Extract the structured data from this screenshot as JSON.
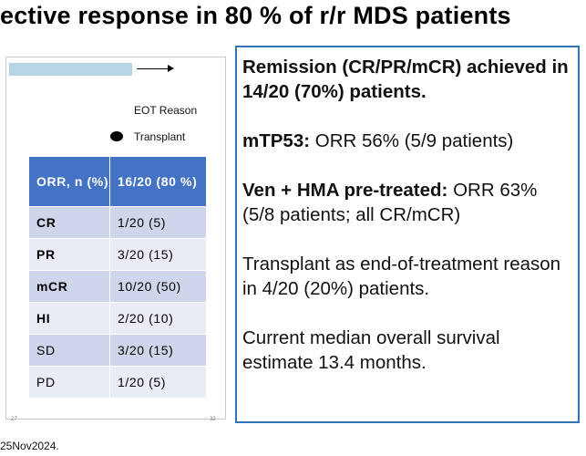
{
  "title": "ective response in 80 % of r/r MDS patients",
  "chart": {
    "legend_title": "EOT Reason",
    "legend_label": "Transplant",
    "axis_left": "27",
    "axis_right": "32"
  },
  "table": {
    "header": [
      "ORR, n (%)",
      "16/20 (80 %)"
    ],
    "rows": [
      {
        "label": "CR",
        "value": "1/20 (5)"
      },
      {
        "label": "PR",
        "value": "3/20 (15)"
      },
      {
        "label": "mCR",
        "value": "10/20 (50)"
      },
      {
        "label": "HI",
        "value": "2/20 (10)"
      },
      {
        "label": "SD",
        "value": "3/20 (15)"
      },
      {
        "label": "PD",
        "value": "1/20 (5)"
      }
    ]
  },
  "footnote": "25Nov2024.",
  "summary": {
    "remission": "Remission (CR/PR/mCR) achieved in 14/20 (70%) patients.",
    "tp53_label": "mTP53:",
    "tp53_text": " ORR 56% (5/9 patients)",
    "ven_label": "Ven + HMA pre-treated:",
    "ven_text": " ORR 63% (5/8 patients; all CR/mCR)",
    "transplant": "Transplant as end-of-treatment reason in 4/20 (20%) patients.",
    "survival": "Current median overall survival estimate 13.4 months."
  }
}
